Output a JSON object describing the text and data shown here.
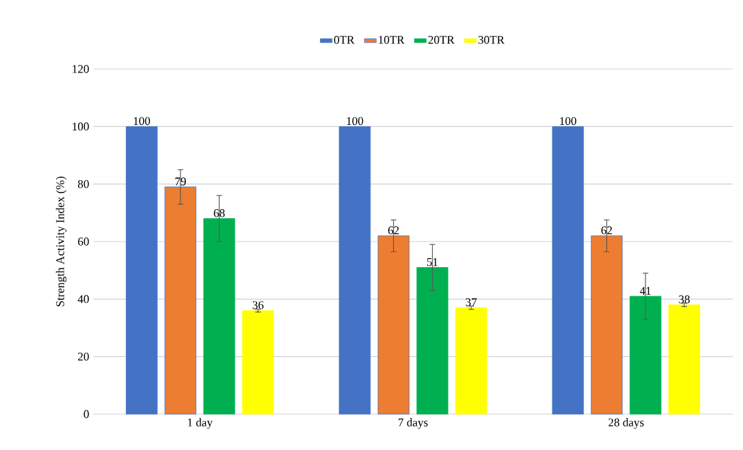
{
  "chart_data": {
    "type": "bar",
    "ylabel": "Strength Activity Index (%)",
    "categories": [
      "1 day",
      "7 days",
      "28 days"
    ],
    "series": [
      {
        "name": "0TR",
        "color": "#4472c4",
        "values": [
          100,
          100,
          100
        ]
      },
      {
        "name": "10TR",
        "color": "#ed7d31",
        "values": [
          79,
          62,
          62
        ],
        "errors": [
          6,
          5.5,
          5.5
        ]
      },
      {
        "name": "20TR",
        "color": "#00b050",
        "values": [
          68,
          51,
          41
        ],
        "errors": [
          8,
          8,
          8
        ]
      },
      {
        "name": "30TR",
        "color": "#ffff00",
        "values": [
          36,
          37,
          38
        ],
        "errors": [
          0.5,
          0.6,
          0.6
        ]
      }
    ],
    "ylim": [
      0,
      120
    ],
    "yticks": [
      0,
      20,
      40,
      60,
      80,
      100,
      120
    ],
    "grid": "y",
    "legend": "top",
    "data_labels": true
  }
}
